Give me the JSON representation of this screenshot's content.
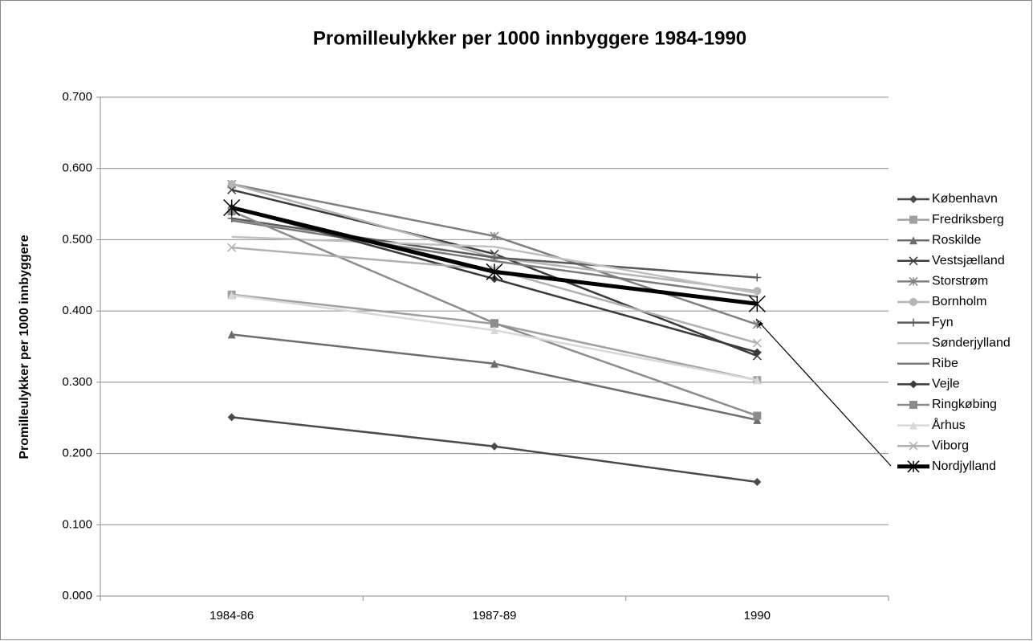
{
  "chart_data": {
    "type": "line",
    "title": "Promilleulykker per 1000 innbyggere 1984-1990",
    "y_label": "Promilleulykker per 1000 innbyggere",
    "categories": [
      "1984-86",
      "1987-89",
      "1990"
    ],
    "ylim": [
      0,
      0.7
    ],
    "yticks": [
      {
        "value": 0,
        "label": "0.000"
      },
      {
        "value": 0.1,
        "label": "0.100"
      },
      {
        "value": 0.2,
        "label": "0.200"
      },
      {
        "value": 0.3,
        "label": "0.300"
      },
      {
        "value": 0.4,
        "label": "0.400"
      },
      {
        "value": 0.5,
        "label": "0.500"
      },
      {
        "value": 0.6,
        "label": "0.600"
      },
      {
        "value": 0.7,
        "label": "0.700"
      }
    ],
    "grid": true,
    "legend": "right",
    "series": [
      {
        "name": "København",
        "color": "#4a4a4a",
        "marker": "diamond",
        "values": [
          0.251,
          0.21,
          0.16
        ]
      },
      {
        "name": "Fredriksberg",
        "color": "#a0a0a0",
        "marker": "square",
        "values": [
          0.423,
          0.382,
          0.303
        ]
      },
      {
        "name": "Roskilde",
        "color": "#6e6e6e",
        "marker": "triangle",
        "values": [
          0.367,
          0.326,
          0.247
        ]
      },
      {
        "name": "Vestsjælland",
        "color": "#3c3c3c",
        "marker": "x",
        "values": [
          0.57,
          0.48,
          0.337
        ]
      },
      {
        "name": "Storstrøm",
        "color": "#808080",
        "marker": "asterisk",
        "values": [
          0.578,
          0.505,
          0.381
        ]
      },
      {
        "name": "Bornholm",
        "color": "#b4b4b4",
        "marker": "circle",
        "values": [
          0.578,
          0.475,
          0.428
        ]
      },
      {
        "name": "Fyn",
        "color": "#5a5a5a",
        "marker": "plus",
        "values": [
          0.53,
          0.475,
          0.447
        ]
      },
      {
        "name": "Sønderjylland",
        "color": "#c0c0c0",
        "marker": "none",
        "values": [
          0.504,
          0.49,
          0.425
        ]
      },
      {
        "name": "Ribe",
        "color": "#7a7a7a",
        "marker": "none",
        "values": [
          0.527,
          0.47,
          0.42
        ]
      },
      {
        "name": "Vejle",
        "color": "#3a3a3a",
        "marker": "diamond",
        "values": [
          0.545,
          0.445,
          0.342
        ]
      },
      {
        "name": "Ringkøbing",
        "color": "#8c8c8c",
        "marker": "square",
        "values": [
          0.54,
          0.383,
          0.253
        ]
      },
      {
        "name": "Århus",
        "color": "#d8d8d8",
        "marker": "triangle",
        "values": [
          0.422,
          0.373,
          0.303
        ]
      },
      {
        "name": "Viborg",
        "color": "#b0b0b0",
        "marker": "x",
        "values": [
          0.489,
          0.458,
          0.355
        ]
      },
      {
        "name": "Nordjylland",
        "color": "#000000",
        "marker": "xstar",
        "values": [
          0.545,
          0.455,
          0.41
        ]
      }
    ]
  }
}
